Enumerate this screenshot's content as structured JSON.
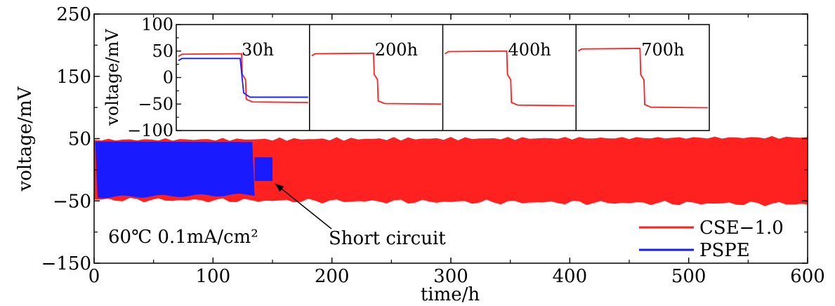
{
  "chart_data": {
    "type": "line",
    "xlabel": "time/h",
    "ylabel": "voltage/mV",
    "xlim": [
      0,
      600
    ],
    "ylim": [
      -150,
      250
    ],
    "xticks": [
      "0",
      "100",
      "200",
      "300",
      "400",
      "500",
      "600"
    ],
    "yticks": [
      "250",
      "150",
      "50",
      "−50",
      "−150"
    ],
    "legend_position": "bottom-right",
    "series": [
      {
        "name": "CSE−1.0",
        "color": "#ff2020",
        "x": [
          0,
          600
        ],
        "upper_envelope": [
          48,
          52
        ],
        "lower_envelope": [
          -48,
          -55
        ]
      },
      {
        "name": "PSPE",
        "color": "#1a1aff",
        "x": [
          0,
          135
        ],
        "upper_envelope": [
          44,
          44
        ],
        "lower_envelope": [
          -44,
          -40
        ]
      }
    ],
    "short_circuit": {
      "x_start": 135,
      "x_end": 150,
      "upper": 20,
      "lower": -18
    },
    "annotations": {
      "condition": "60℃   0.1mA/cm²",
      "short_circuit": "Short circuit"
    },
    "inset": {
      "ylabel": "voltage/mV",
      "ylim": [
        -100,
        100
      ],
      "yticks": [
        "100",
        "50",
        "0",
        "−50",
        "−100"
      ],
      "panels": [
        {
          "label": "30h",
          "cse_high": 45,
          "cse_low": -47,
          "pspe_high": 36,
          "pspe_low": -37
        },
        {
          "label": "200h",
          "cse_high": 46,
          "cse_low": -50
        },
        {
          "label": "400h",
          "cse_high": 50,
          "cse_low": -53
        },
        {
          "label": "700h",
          "cse_high": 55,
          "cse_low": -57
        }
      ]
    }
  }
}
